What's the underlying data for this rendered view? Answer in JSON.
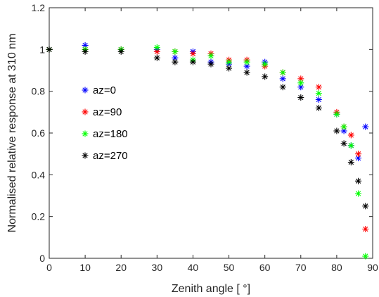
{
  "chart_data": {
    "type": "scatter",
    "xlabel": "Zenith angle [    °]",
    "ylabel": "Normalised relative response at 310 nm",
    "xlim": [
      0,
      90
    ],
    "ylim": [
      0,
      1.2
    ],
    "xticks": [
      "0",
      "10",
      "20",
      "30",
      "40",
      "50",
      "60",
      "70",
      "80",
      "90"
    ],
    "yticks": [
      "0",
      "0.2",
      "0.4",
      "0.6",
      "0.8",
      "1",
      "1.2"
    ],
    "grid": false,
    "legend_position": "left-middle",
    "marker": "asterisk",
    "series": [
      {
        "name": "az=0",
        "color": "#0000ff",
        "x": [
          0,
          10,
          20,
          30,
          35,
          40,
          45,
          50,
          55,
          60,
          65,
          70,
          75,
          80,
          82,
          84,
          86,
          88
        ],
        "y": [
          1.0,
          1.02,
          1.0,
          1.0,
          0.96,
          0.99,
          0.94,
          0.93,
          0.92,
          0.94,
          0.86,
          0.82,
          0.76,
          0.69,
          0.61,
          0.54,
          0.48,
          0.63
        ]
      },
      {
        "name": "az=90",
        "color": "#ff0000",
        "x": [
          0,
          10,
          20,
          30,
          35,
          40,
          45,
          50,
          55,
          60,
          65,
          70,
          75,
          80,
          82,
          84,
          86,
          88
        ],
        "y": [
          1.0,
          1.0,
          1.0,
          0.99,
          0.99,
          0.98,
          0.98,
          0.95,
          0.95,
          0.92,
          0.89,
          0.86,
          0.82,
          0.7,
          0.63,
          0.59,
          0.5,
          0.14
        ]
      },
      {
        "name": "az=180",
        "color": "#00ff00",
        "x": [
          0,
          10,
          20,
          30,
          35,
          40,
          45,
          50,
          55,
          60,
          65,
          70,
          75,
          80,
          82,
          84,
          86,
          88
        ],
        "y": [
          1.0,
          1.0,
          1.0,
          1.01,
          0.99,
          0.95,
          0.97,
          0.94,
          0.94,
          0.93,
          0.89,
          0.84,
          0.79,
          0.69,
          0.63,
          0.54,
          0.31,
          0.01
        ]
      },
      {
        "name": "az=270",
        "color": "#000000",
        "x": [
          0,
          10,
          20,
          30,
          35,
          40,
          45,
          50,
          55,
          60,
          65,
          70,
          75,
          80,
          82,
          84,
          86,
          88
        ],
        "y": [
          1.0,
          0.99,
          0.99,
          0.96,
          0.94,
          0.94,
          0.93,
          0.91,
          0.89,
          0.87,
          0.82,
          0.77,
          0.72,
          0.61,
          0.55,
          0.46,
          0.37,
          0.25
        ]
      }
    ]
  }
}
